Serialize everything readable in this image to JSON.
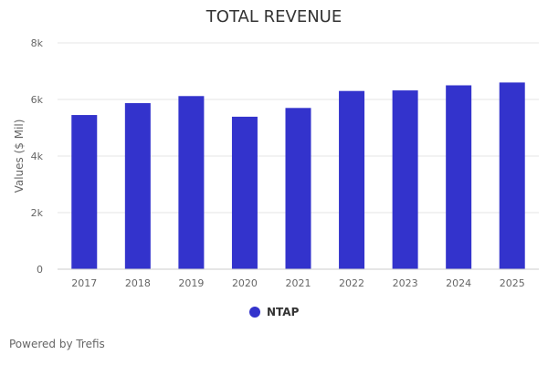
{
  "chart_data": {
    "type": "bar",
    "title": "TOTAL REVENUE",
    "xlabel": "",
    "ylabel": "Values ($ Mil)",
    "categories": [
      "2017",
      "2018",
      "2019",
      "2020",
      "2021",
      "2022",
      "2023",
      "2024",
      "2025"
    ],
    "series": [
      {
        "name": "NTAP",
        "values": [
          5450,
          5870,
          6120,
          5390,
          5700,
          6300,
          6320,
          6500,
          6600
        ],
        "color": "#3333cc"
      }
    ],
    "ylim": [
      0,
      8000
    ],
    "y_ticks": [
      0,
      2000,
      4000,
      6000,
      8000
    ],
    "y_tick_labels": [
      "0",
      "2k",
      "4k",
      "6k",
      "8k"
    ],
    "grid": true,
    "legend_position": "bottom-center"
  },
  "footer": {
    "credit": "Powered by Trefis"
  }
}
